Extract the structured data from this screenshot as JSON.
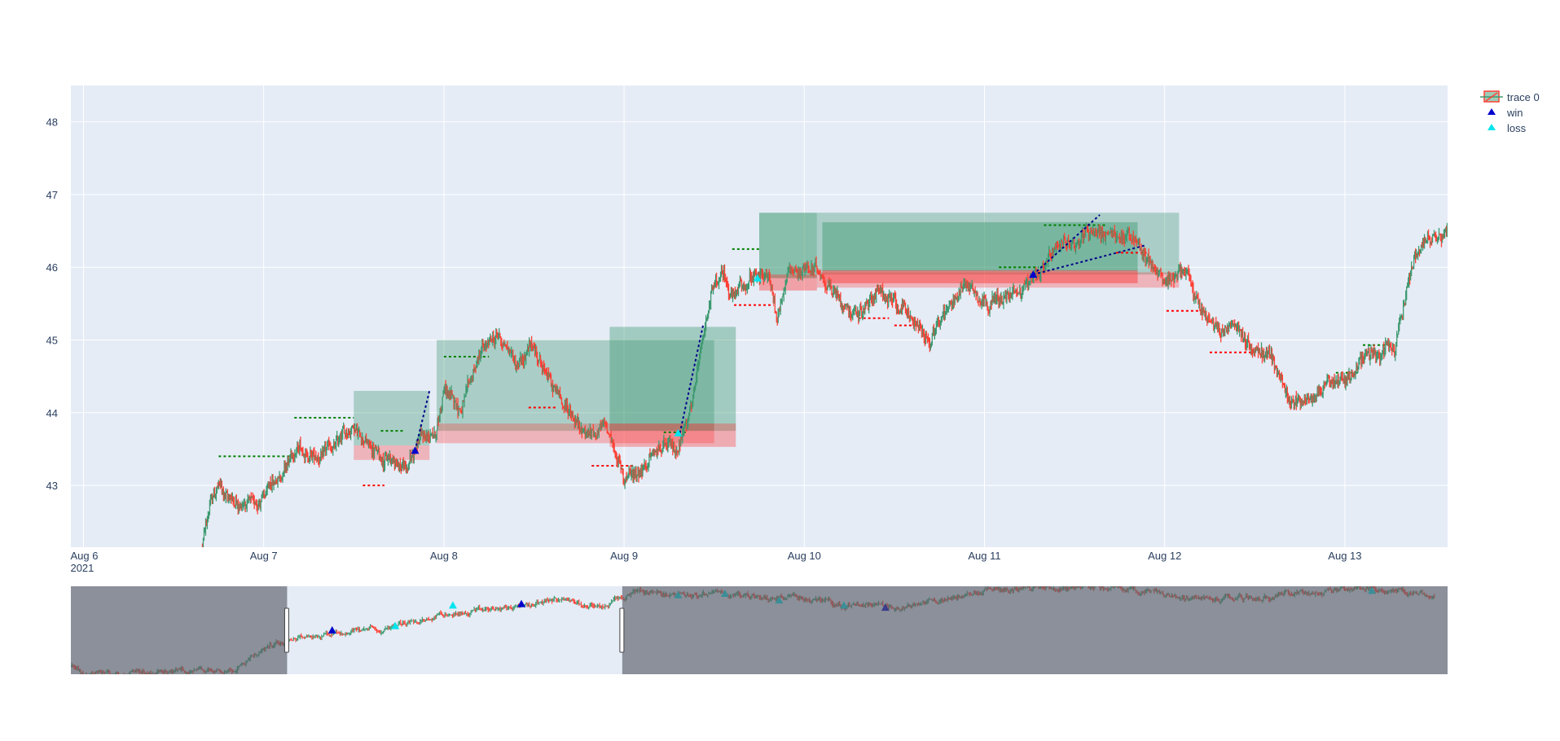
{
  "chart_data": {
    "type": "candlestick",
    "xaxis": {
      "ticks": [
        "Aug 6",
        "Aug 7",
        "Aug 8",
        "Aug 9",
        "Aug 10",
        "Aug 11",
        "Aug 12",
        "Aug 13"
      ],
      "year_label": "2021",
      "range_days": [
        5.93,
        13.57
      ]
    },
    "yaxis": {
      "ticks": [
        "43",
        "44",
        "45",
        "46",
        "47",
        "48"
      ],
      "range": [
        42.15,
        48.5
      ]
    },
    "legend": [
      {
        "name": "trace 0",
        "symbol": "candlestick"
      },
      {
        "name": "win",
        "symbol": "triangle",
        "color": "#0000cd"
      },
      {
        "name": "loss",
        "symbol": "triangle",
        "color": "#00e5ee"
      }
    ],
    "colors": {
      "increasing": "#3d9970",
      "decreasing": "#ff4136",
      "plot_bg": "#e5ecf6",
      "take_profit_zone": "#3d9970",
      "stop_loss_zone": "#ff3333",
      "win_marker": "#0000cd",
      "loss_marker": "#00e5ee",
      "trade_line": "#00008b"
    },
    "price_path": [
      [
        6.66,
        42.15
      ],
      [
        6.7,
        42.75
      ],
      [
        6.75,
        43.0
      ],
      [
        6.8,
        42.85
      ],
      [
        6.9,
        42.75
      ],
      [
        7.0,
        42.8
      ],
      [
        7.1,
        43.2
      ],
      [
        7.2,
        43.5
      ],
      [
        7.3,
        43.35
      ],
      [
        7.4,
        43.55
      ],
      [
        7.5,
        43.85
      ],
      [
        7.6,
        43.5
      ],
      [
        7.7,
        43.35
      ],
      [
        7.8,
        43.25
      ],
      [
        7.87,
        43.7
      ],
      [
        7.95,
        43.65
      ],
      [
        8.0,
        44.3
      ],
      [
        8.1,
        44.05
      ],
      [
        8.2,
        44.8
      ],
      [
        8.3,
        45.05
      ],
      [
        8.4,
        44.7
      ],
      [
        8.5,
        44.9
      ],
      [
        8.6,
        44.35
      ],
      [
        8.7,
        44.0
      ],
      [
        8.8,
        43.7
      ],
      [
        8.9,
        43.8
      ],
      [
        9.0,
        43.1
      ],
      [
        9.1,
        43.25
      ],
      [
        9.2,
        43.5
      ],
      [
        9.3,
        43.5
      ],
      [
        9.4,
        44.4
      ],
      [
        9.48,
        45.6
      ],
      [
        9.55,
        45.9
      ],
      [
        9.6,
        45.6
      ],
      [
        9.7,
        45.8
      ],
      [
        9.8,
        45.9
      ],
      [
        9.85,
        45.3
      ],
      [
        9.9,
        45.9
      ],
      [
        10.0,
        46.0
      ],
      [
        10.1,
        45.9
      ],
      [
        10.2,
        45.55
      ],
      [
        10.3,
        45.35
      ],
      [
        10.4,
        45.7
      ],
      [
        10.5,
        45.5
      ],
      [
        10.6,
        45.3
      ],
      [
        10.7,
        44.95
      ],
      [
        10.8,
        45.5
      ],
      [
        10.9,
        45.8
      ],
      [
        11.0,
        45.55
      ],
      [
        11.1,
        45.55
      ],
      [
        11.2,
        45.7
      ],
      [
        11.3,
        45.95
      ],
      [
        11.4,
        46.2
      ],
      [
        11.5,
        46.35
      ],
      [
        11.6,
        46.55
      ],
      [
        11.7,
        46.4
      ],
      [
        11.8,
        46.45
      ],
      [
        11.9,
        46.15
      ],
      [
        12.0,
        45.8
      ],
      [
        12.1,
        46.0
      ],
      [
        12.2,
        45.4
      ],
      [
        12.3,
        45.1
      ],
      [
        12.4,
        45.2
      ],
      [
        12.5,
        44.85
      ],
      [
        12.6,
        44.75
      ],
      [
        12.7,
        44.1
      ],
      [
        12.8,
        44.2
      ],
      [
        12.9,
        44.5
      ],
      [
        13.0,
        44.4
      ],
      [
        13.1,
        44.75
      ],
      [
        13.28,
        44.85
      ],
      [
        13.35,
        45.8
      ],
      [
        13.4,
        46.3
      ],
      [
        13.5,
        46.4
      ],
      [
        13.57,
        46.55
      ]
    ],
    "zones": [
      {
        "kind": "take_profit",
        "x0": 7.5,
        "x1": 7.92,
        "y0": 43.55,
        "y1": 44.3,
        "opacity": 0.35
      },
      {
        "kind": "stop_loss",
        "x0": 7.5,
        "x1": 7.92,
        "y0": 43.35,
        "y1": 43.55,
        "opacity": 0.3
      },
      {
        "kind": "take_profit",
        "x0": 7.96,
        "x1": 9.5,
        "y0": 43.75,
        "y1": 45.0,
        "opacity": 0.35
      },
      {
        "kind": "stop_loss",
        "x0": 7.96,
        "x1": 9.5,
        "y0": 43.58,
        "y1": 43.85,
        "opacity": 0.3
      },
      {
        "kind": "take_profit",
        "x0": 8.92,
        "x1": 9.62,
        "y0": 43.75,
        "y1": 45.18,
        "opacity": 0.4
      },
      {
        "kind": "stop_loss",
        "x0": 8.92,
        "x1": 9.62,
        "y0": 43.53,
        "y1": 43.85,
        "opacity": 0.35
      },
      {
        "kind": "take_profit",
        "x0": 9.75,
        "x1": 10.07,
        "y0": 45.85,
        "y1": 46.75,
        "opacity": 0.55
      },
      {
        "kind": "stop_loss",
        "x0": 9.75,
        "x1": 10.07,
        "y0": 45.68,
        "y1": 45.9,
        "opacity": 0.4
      },
      {
        "kind": "take_profit",
        "x0": 10.07,
        "x1": 12.08,
        "y0": 45.9,
        "y1": 46.75,
        "opacity": 0.35
      },
      {
        "kind": "stop_loss",
        "x0": 10.07,
        "x1": 12.08,
        "y0": 45.72,
        "y1": 45.93,
        "opacity": 0.3
      },
      {
        "kind": "take_profit",
        "x0": 10.1,
        "x1": 11.85,
        "y0": 45.95,
        "y1": 46.62,
        "opacity": 0.45
      },
      {
        "kind": "stop_loss",
        "x0": 10.1,
        "x1": 11.85,
        "y0": 45.78,
        "y1": 45.96,
        "opacity": 0.45
      }
    ],
    "entry_levels": [
      {
        "kind": "high",
        "x0": 6.75,
        "x1": 7.15,
        "y": 43.4
      },
      {
        "kind": "high",
        "x0": 7.17,
        "x1": 7.5,
        "y": 43.93
      },
      {
        "kind": "low",
        "x0": 7.55,
        "x1": 7.67,
        "y": 43.0
      },
      {
        "kind": "high",
        "x0": 7.65,
        "x1": 7.78,
        "y": 43.75
      },
      {
        "kind": "high",
        "x0": 8.0,
        "x1": 8.25,
        "y": 44.77
      },
      {
        "kind": "low",
        "x0": 8.47,
        "x1": 8.62,
        "y": 44.07
      },
      {
        "kind": "low",
        "x0": 8.82,
        "x1": 9.05,
        "y": 43.27
      },
      {
        "kind": "high",
        "x0": 9.22,
        "x1": 9.35,
        "y": 43.73
      },
      {
        "kind": "high",
        "x0": 9.6,
        "x1": 9.75,
        "y": 46.25
      },
      {
        "kind": "low",
        "x0": 9.61,
        "x1": 9.83,
        "y": 45.48
      },
      {
        "kind": "low",
        "x0": 10.3,
        "x1": 10.47,
        "y": 45.3
      },
      {
        "kind": "low",
        "x0": 10.5,
        "x1": 10.65,
        "y": 45.2
      },
      {
        "kind": "high",
        "x0": 11.08,
        "x1": 11.3,
        "y": 46.0
      },
      {
        "kind": "high",
        "x0": 11.33,
        "x1": 11.68,
        "y": 46.58
      },
      {
        "kind": "low",
        "x0": 11.73,
        "x1": 11.9,
        "y": 46.2
      },
      {
        "kind": "low",
        "x0": 12.01,
        "x1": 12.22,
        "y": 45.4
      },
      {
        "kind": "low",
        "x0": 12.25,
        "x1": 12.5,
        "y": 44.83
      },
      {
        "kind": "high",
        "x0": 12.95,
        "x1": 13.08,
        "y": 44.55
      },
      {
        "kind": "high",
        "x0": 13.1,
        "x1": 13.28,
        "y": 44.93
      }
    ],
    "trades": [
      {
        "x0": 7.84,
        "y0": 43.48,
        "x1": 7.92,
        "y1": 44.3
      },
      {
        "x0": 9.31,
        "y0": 43.72,
        "x1": 9.44,
        "y1": 45.22
      },
      {
        "x0": 11.27,
        "y0": 45.9,
        "x1": 11.64,
        "y1": 46.72
      },
      {
        "x0": 11.27,
        "y0": 45.9,
        "x1": 11.89,
        "y1": 46.3
      }
    ],
    "markers": [
      {
        "series": "win",
        "x": 7.84,
        "y": 43.48
      },
      {
        "series": "win",
        "x": 11.27,
        "y": 45.9
      },
      {
        "series": "loss",
        "x": 9.3,
        "y": 43.72
      },
      {
        "series": "loss",
        "x": 9.74,
        "y": 45.85
      }
    ],
    "rangeslider": {
      "selected_days": [
        7.13,
        8.99
      ],
      "overview_path": [
        [
          5.93,
          36.0
        ],
        [
          6.0,
          35.0
        ],
        [
          6.66,
          35.5
        ],
        [
          6.85,
          36.0
        ],
        [
          7.0,
          38.5
        ],
        [
          7.13,
          40.0
        ],
        [
          7.4,
          40.6
        ],
        [
          7.6,
          41.1
        ],
        [
          7.84,
          42.2
        ],
        [
          8.0,
          43.2
        ],
        [
          8.2,
          43.8
        ],
        [
          8.5,
          44.6
        ],
        [
          8.7,
          45.3
        ],
        [
          8.8,
          44.4
        ],
        [
          8.9,
          44.3
        ],
        [
          8.99,
          45.3
        ],
        [
          9.1,
          46.3
        ],
        [
          9.3,
          46.0
        ],
        [
          9.5,
          45.9
        ],
        [
          9.65,
          45.6
        ],
        [
          9.8,
          45.3
        ],
        [
          9.95,
          45.6
        ],
        [
          10.1,
          45.0
        ],
        [
          10.2,
          44.5
        ],
        [
          10.3,
          44.6
        ],
        [
          10.45,
          44.3
        ],
        [
          10.55,
          44.1
        ],
        [
          10.7,
          45.0
        ],
        [
          10.9,
          45.7
        ],
        [
          11.0,
          46.8
        ],
        [
          11.1,
          46.7
        ],
        [
          11.25,
          46.9
        ],
        [
          11.4,
          46.8
        ],
        [
          11.6,
          47.0
        ],
        [
          11.9,
          46.5
        ],
        [
          12.0,
          45.8
        ],
        [
          12.2,
          45.3
        ],
        [
          12.4,
          45.4
        ],
        [
          12.6,
          45.7
        ],
        [
          12.8,
          46.2
        ],
        [
          12.95,
          46.4
        ],
        [
          13.1,
          46.8
        ],
        [
          13.3,
          46.5
        ],
        [
          13.45,
          45.7
        ],
        [
          13.5,
          45.6
        ]
      ],
      "overview_yrange": [
        35.0,
        47.0
      ],
      "overview_markers": [
        {
          "series": "win",
          "x": 7.38,
          "y": 41.0
        },
        {
          "series": "loss",
          "x": 7.73,
          "y": 41.6
        },
        {
          "series": "loss",
          "x": 8.05,
          "y": 44.4
        },
        {
          "series": "win",
          "x": 8.43,
          "y": 44.6
        },
        {
          "series": "loss",
          "x": 9.3,
          "y": 45.8
        },
        {
          "series": "loss",
          "x": 9.56,
          "y": 46.0
        },
        {
          "series": "loss",
          "x": 9.86,
          "y": 45.1
        },
        {
          "series": "loss",
          "x": 10.22,
          "y": 44.4
        },
        {
          "series": "win",
          "x": 10.45,
          "y": 44.1
        },
        {
          "series": "loss",
          "x": 13.15,
          "y": 46.4
        }
      ]
    }
  }
}
